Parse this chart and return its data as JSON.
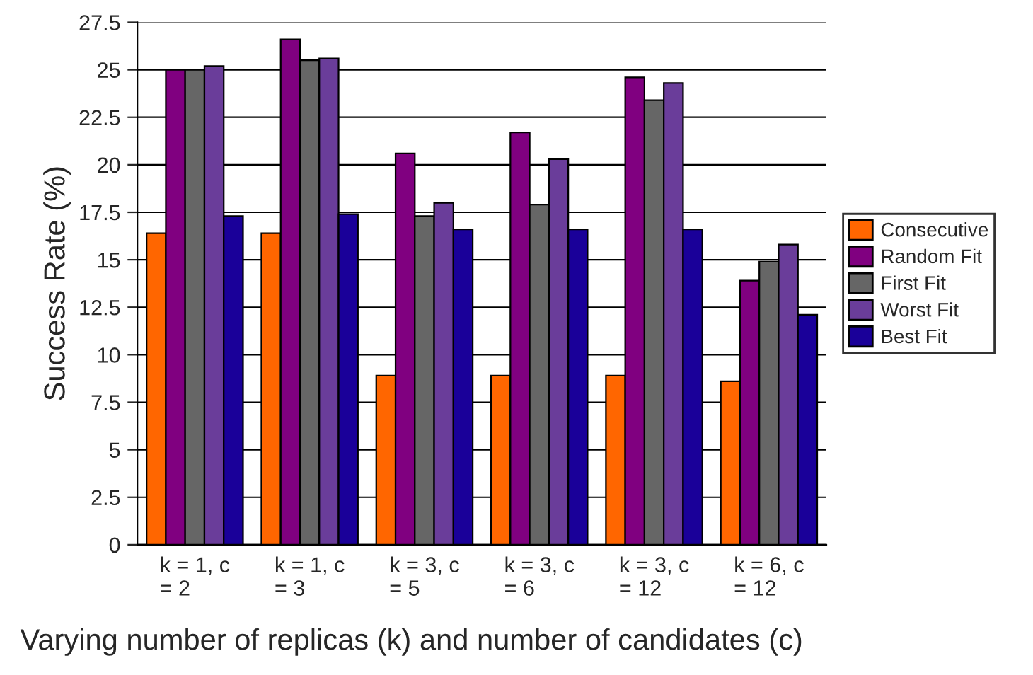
{
  "chart_data": {
    "type": "bar",
    "xlabel": "Varying number of replicas (k) and number of candidates (c)",
    "ylabel": "Success Rate (%)",
    "categories": [
      "k = 1, c\n= 2",
      "k = 1, c\n= 3",
      "k = 3, c\n= 5",
      "k = 3, c\n= 6",
      "k = 3, c\n= 12",
      "k = 6, c\n= 12"
    ],
    "series": [
      {
        "name": "Consecutive",
        "color": "#ff6600",
        "values": [
          16.4,
          16.4,
          8.9,
          8.9,
          8.9,
          8.6
        ]
      },
      {
        "name": "Random Fit",
        "color": "#800080",
        "values": [
          25,
          26.6,
          20.6,
          21.7,
          24.6,
          13.9
        ]
      },
      {
        "name": "First Fit",
        "color": "#666666",
        "values": [
          25,
          25.5,
          17.3,
          17.9,
          23.4,
          14.9
        ]
      },
      {
        "name": "Worst Fit",
        "color": "#6a3d9a",
        "values": [
          25.2,
          25.6,
          18,
          20.3,
          24.3,
          15.8
        ]
      },
      {
        "name": "Best Fit",
        "color": "#1a0099",
        "values": [
          17.3,
          17.4,
          16.6,
          16.6,
          16.6,
          12.1
        ]
      }
    ],
    "ylim": [
      0,
      27.5
    ],
    "yticks": [
      0,
      2.5,
      5,
      7.5,
      10,
      12.5,
      15,
      17.5,
      20,
      22.5,
      25,
      27.5
    ],
    "grid": "y",
    "legend": "right"
  }
}
